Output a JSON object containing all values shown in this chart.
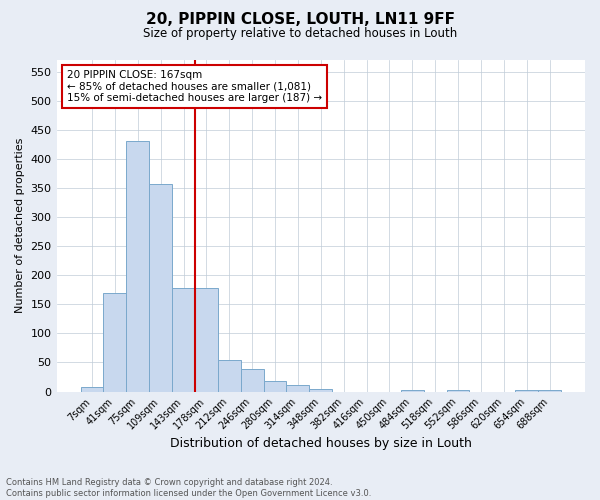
{
  "title": "20, PIPPIN CLOSE, LOUTH, LN11 9FF",
  "subtitle": "Size of property relative to detached houses in Louth",
  "xlabel": "Distribution of detached houses by size in Louth",
  "ylabel": "Number of detached properties",
  "bar_labels": [
    "7sqm",
    "41sqm",
    "75sqm",
    "109sqm",
    "143sqm",
    "178sqm",
    "212sqm",
    "246sqm",
    "280sqm",
    "314sqm",
    "348sqm",
    "382sqm",
    "416sqm",
    "450sqm",
    "484sqm",
    "518sqm",
    "552sqm",
    "586sqm",
    "620sqm",
    "654sqm",
    "688sqm"
  ],
  "bar_values": [
    8,
    170,
    430,
    357,
    178,
    178,
    55,
    38,
    19,
    12,
    4,
    0,
    0,
    0,
    3,
    0,
    2,
    0,
    0,
    3,
    3
  ],
  "bar_color": "#c8d8ee",
  "bar_edge_color": "#7aa8cc",
  "ylim": [
    0,
    570
  ],
  "yticks": [
    0,
    50,
    100,
    150,
    200,
    250,
    300,
    350,
    400,
    450,
    500,
    550
  ],
  "vline_index": 4.5,
  "vline_color": "#cc0000",
  "annotation_line1": "20 PIPPIN CLOSE: 167sqm",
  "annotation_line2": "← 85% of detached houses are smaller (1,081)",
  "annotation_line3": "15% of semi-detached houses are larger (187) →",
  "annotation_box_color": "#cc0000",
  "footer": "Contains HM Land Registry data © Crown copyright and database right 2024.\nContains public sector information licensed under the Open Government Licence v3.0.",
  "fig_bg_color": "#e8edf5",
  "plot_bg_color": "#ffffff"
}
